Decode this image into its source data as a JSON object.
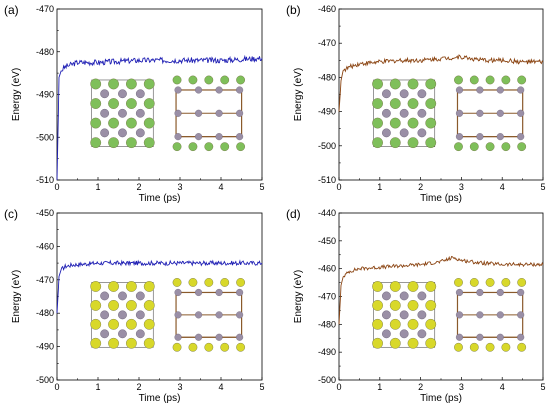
{
  "colors": {
    "blue_series": "#1f1fb4",
    "brown_series": "#8b4513",
    "pink_band": "#f7c6e3",
    "green_atom": "#7fbf5a",
    "gray_atom": "#9a8fa6",
    "yellow_atom": "#d8d82a",
    "bond_brown": "#8a5a2b"
  },
  "chart_data": [
    {
      "type": "line",
      "tag": "(a)",
      "xlabel": "Time (ps)",
      "ylabel": "Energy (eV)",
      "xlim": [
        0,
        5
      ],
      "ylim": [
        -510,
        -470
      ],
      "xticks": [
        "0",
        "1",
        "2",
        "3",
        "4",
        "5"
      ],
      "yticks": [
        "-470",
        "-480",
        "-490",
        "-500",
        "-510"
      ],
      "inset": "green",
      "series": [
        {
          "color_key": "blue_series",
          "x": [
            0,
            0.05,
            0.1,
            0.2,
            0.35,
            0.5,
            1,
            2,
            3,
            4,
            5
          ],
          "y": [
            -510,
            -486,
            -484.5,
            -483.5,
            -483,
            -482.5,
            -482.5,
            -482,
            -482,
            -482,
            -481.5
          ]
        }
      ]
    },
    {
      "type": "line",
      "tag": "(b)",
      "xlabel": "Time (ps)",
      "ylabel": "Energy (eV)",
      "xlim": [
        0,
        5
      ],
      "ylim": [
        -510,
        -460
      ],
      "xticks": [
        "0",
        "1",
        "2",
        "3",
        "4",
        "5"
      ],
      "yticks": [
        "-460",
        "-470",
        "-480",
        "-490",
        "-500",
        "-510"
      ],
      "inset": "green",
      "series": [
        {
          "color_key": "brown_series",
          "x": [
            0,
            0.05,
            0.1,
            0.25,
            0.5,
            1,
            1.5,
            2,
            2.5,
            3,
            3.5,
            4,
            4.5,
            5
          ],
          "y": [
            -490,
            -481,
            -478,
            -477,
            -476,
            -475.5,
            -475,
            -475,
            -474.5,
            -474,
            -475,
            -475,
            -475.5,
            -475.5
          ]
        }
      ]
    },
    {
      "type": "line",
      "tag": "(c)",
      "xlabel": "Time (ps)",
      "ylabel": "Energy (eV)",
      "xlim": [
        0,
        5
      ],
      "ylim": [
        -500,
        -450
      ],
      "xticks": [
        "0",
        "1",
        "2",
        "3",
        "4",
        "5"
      ],
      "yticks": [
        "-450",
        "-460",
        "-470",
        "-480",
        "-490",
        "-500"
      ],
      "inset": "yellow",
      "series": [
        {
          "color_key": "blue_series",
          "x": [
            0,
            0.05,
            0.1,
            0.2,
            0.4,
            1,
            2,
            3,
            4,
            5
          ],
          "y": [
            -480,
            -469,
            -467,
            -466,
            -465.5,
            -465,
            -465,
            -465,
            -465,
            -465
          ]
        }
      ]
    },
    {
      "type": "line",
      "tag": "(d)",
      "xlabel": "Time (ps)",
      "ylabel": "Energy (eV)",
      "xlim": [
        0,
        5
      ],
      "ylim": [
        -500,
        -440
      ],
      "xticks": [
        "0",
        "1",
        "2",
        "3",
        "4",
        "5"
      ],
      "yticks": [
        "-440",
        "-450",
        "-460",
        "-470",
        "-480",
        "-490",
        "-500"
      ],
      "inset": "yellow",
      "series": [
        {
          "color_key": "brown_series",
          "x": [
            0,
            0.05,
            0.1,
            0.25,
            0.5,
            1,
            1.5,
            2,
            2.5,
            2.8,
            3,
            3.5,
            4,
            4.5,
            5
          ],
          "y": [
            -480,
            -466,
            -463,
            -461,
            -460,
            -459.5,
            -459,
            -458.5,
            -457.5,
            -456,
            -457,
            -458,
            -458.5,
            -458.5,
            -458.5
          ]
        }
      ]
    }
  ]
}
